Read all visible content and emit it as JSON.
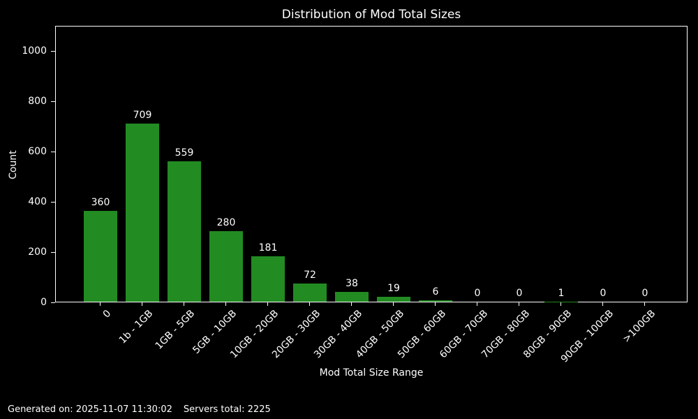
{
  "title": "Distribution of Mod Total Sizes",
  "footer": {
    "generated": "Generated on: 2025-11-07 11:30:02",
    "servers_total": "Servers total: 2225"
  },
  "chart_data": {
    "type": "bar",
    "title": "Distribution of Mod Total Sizes",
    "xlabel": "Mod Total Size Range",
    "ylabel": "Count",
    "categories": [
      "0",
      "1b - 1GB",
      "1GB - 5GB",
      "5GB - 10GB",
      "10GB - 20GB",
      "20GB - 30GB",
      "30GB - 40GB",
      "40GB - 50GB",
      "50GB - 60GB",
      "60GB - 70GB",
      "70GB - 80GB",
      "80GB - 90GB",
      "90GB - 100GB",
      ">100GB"
    ],
    "values": [
      360,
      709,
      559,
      280,
      181,
      72,
      38,
      19,
      6,
      0,
      0,
      1,
      0,
      0
    ],
    "bar_labels": [
      360,
      709,
      559,
      280,
      181,
      72,
      38,
      19,
      6,
      0,
      0,
      1,
      0,
      0
    ],
    "yticks": [
      0,
      200,
      400,
      600,
      800,
      1000
    ],
    "ylim": [
      0,
      1100
    ],
    "grid": false,
    "legend": null,
    "bar_color": "#228B22",
    "background_color": "#000000",
    "text_color": "#ffffff",
    "axis_color": "#ffffff"
  }
}
